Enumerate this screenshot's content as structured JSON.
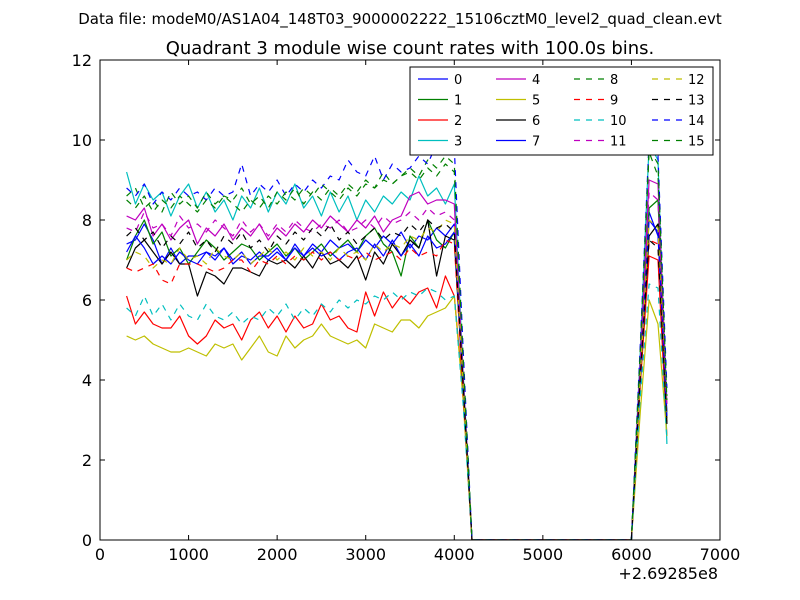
{
  "figure": {
    "supertitle": "Data file: modeM0/AS1A04_148T03_9000002222_15106cztM0_level2_quad_clean.evt"
  },
  "chart_data": {
    "type": "line",
    "title": "Quadrant 3 module wise count rates with 100.0s bins.",
    "xlabel": "",
    "ylabel": "",
    "x_offset_label": "+2.69285e8",
    "xlim": [
      0,
      7000
    ],
    "ylim": [
      0,
      12
    ],
    "xticks": [
      0,
      1000,
      2000,
      3000,
      4000,
      5000,
      6000,
      7000
    ],
    "yticks": [
      0,
      2,
      4,
      6,
      8,
      10,
      12
    ],
    "grid": false,
    "legend": {
      "placement": "top-right",
      "columns": 4
    },
    "x": [
      300,
      400,
      500,
      600,
      700,
      800,
      900,
      1000,
      1100,
      1200,
      1300,
      1400,
      1500,
      1600,
      1700,
      1800,
      1900,
      2000,
      2100,
      2200,
      2300,
      2400,
      2500,
      2600,
      2700,
      2800,
      2900,
      3000,
      3100,
      3200,
      3300,
      3400,
      3500,
      3600,
      3700,
      3800,
      3900,
      4000,
      4100,
      4200,
      4300,
      4400,
      4500,
      4600,
      4700,
      4800,
      4900,
      5000,
      5100,
      5200,
      5300,
      5400,
      5500,
      5600,
      5700,
      5800,
      5900,
      6000,
      6100,
      6200,
      6300,
      6400
    ],
    "series": [
      {
        "name": "0",
        "color": "#0000ff",
        "dash": "solid",
        "values": [
          7.4,
          7.5,
          7.9,
          7.5,
          6.9,
          7.3,
          6.9,
          7.1,
          7.1,
          7.2,
          7.1,
          7.3,
          7.0,
          7.2,
          6.9,
          7.1,
          7.1,
          7.3,
          7.0,
          7.4,
          7.1,
          7.4,
          7.2,
          7.5,
          7.3,
          7.4,
          7.2,
          7.5,
          7.3,
          7.6,
          7.4,
          7.7,
          7.3,
          7.6,
          7.5,
          7.8,
          7.6,
          7.9,
          3.9,
          0.0,
          0.0,
          0.0,
          0.0,
          0.0,
          0.0,
          0.0,
          0.0,
          0.0,
          0.0,
          0.0,
          0.0,
          0.0,
          0.0,
          0.0,
          0.0,
          0.0,
          0.0,
          0.0,
          4.2,
          8.2,
          7.6,
          3.2
        ]
      },
      {
        "name": "1",
        "color": "#008000",
        "dash": "solid",
        "values": [
          7.0,
          7.6,
          8.0,
          7.4,
          7.7,
          7.1,
          7.3,
          6.9,
          7.2,
          7.5,
          7.3,
          7.0,
          7.2,
          7.4,
          7.3,
          7.0,
          7.2,
          7.4,
          7.1,
          7.3,
          7.0,
          7.2,
          7.4,
          7.1,
          7.3,
          7.5,
          7.2,
          7.6,
          7.8,
          7.4,
          7.2,
          6.6,
          7.6,
          7.3,
          8.0,
          7.5,
          7.3,
          7.7,
          4.0,
          0.0,
          0.0,
          0.0,
          0.0,
          0.0,
          0.0,
          0.0,
          0.0,
          0.0,
          0.0,
          0.0,
          0.0,
          0.0,
          0.0,
          0.0,
          0.0,
          0.0,
          0.0,
          0.0,
          4.4,
          8.3,
          8.5,
          3.0
        ]
      },
      {
        "name": "2",
        "color": "#ff0000",
        "dash": "solid",
        "values": [
          6.1,
          5.4,
          5.7,
          5.4,
          5.3,
          5.3,
          5.6,
          5.1,
          4.9,
          5.1,
          5.5,
          5.3,
          5.4,
          5.0,
          5.5,
          5.7,
          5.3,
          5.6,
          5.2,
          5.6,
          5.3,
          5.4,
          5.9,
          5.5,
          5.6,
          5.3,
          5.2,
          6.2,
          5.6,
          6.2,
          5.8,
          6.1,
          5.9,
          6.2,
          6.3,
          5.8,
          6.6,
          6.1,
          3.7,
          0.0,
          0.0,
          0.0,
          0.0,
          0.0,
          0.0,
          0.0,
          0.0,
          0.0,
          0.0,
          0.0,
          0.0,
          0.0,
          0.0,
          0.0,
          0.0,
          0.0,
          0.0,
          0.0,
          3.9,
          7.1,
          7.0,
          2.6
        ]
      },
      {
        "name": "3",
        "color": "#00bfbf",
        "dash": "solid",
        "values": [
          9.2,
          8.4,
          8.9,
          8.5,
          8.7,
          8.1,
          8.6,
          8.9,
          8.3,
          8.7,
          8.2,
          8.5,
          8.0,
          8.6,
          8.3,
          8.8,
          8.2,
          8.7,
          8.4,
          8.9,
          8.3,
          8.6,
          8.1,
          8.7,
          8.2,
          8.6,
          8.0,
          8.5,
          8.2,
          8.6,
          8.4,
          8.7,
          8.5,
          9.1,
          8.6,
          8.8,
          8.4,
          8.9,
          4.2,
          0.0,
          0.0,
          0.0,
          0.0,
          0.0,
          0.0,
          0.0,
          0.0,
          0.0,
          0.0,
          0.0,
          0.0,
          0.0,
          0.0,
          0.0,
          0.0,
          0.0,
          0.0,
          0.0,
          4.7,
          9.9,
          9.5,
          2.4
        ]
      },
      {
        "name": "4",
        "color": "#bf00bf",
        "dash": "solid",
        "values": [
          8.1,
          8.0,
          8.3,
          7.6,
          7.9,
          7.5,
          7.8,
          8.0,
          7.4,
          7.8,
          7.6,
          7.9,
          7.5,
          7.8,
          7.6,
          7.9,
          7.5,
          7.8,
          7.6,
          7.9,
          7.7,
          8.0,
          7.8,
          8.1,
          7.9,
          7.7,
          8.0,
          7.8,
          8.1,
          7.7,
          8.0,
          8.1,
          8.6,
          8.7,
          8.4,
          8.5,
          8.5,
          8.4,
          4.1,
          0.0,
          0.0,
          0.0,
          0.0,
          0.0,
          0.0,
          0.0,
          0.0,
          0.0,
          0.0,
          0.0,
          0.0,
          0.0,
          0.0,
          0.0,
          0.0,
          0.0,
          0.0,
          0.0,
          4.5,
          9.0,
          8.9,
          3.4
        ]
      },
      {
        "name": "5",
        "color": "#bfbf00",
        "dash": "solid",
        "values": [
          5.1,
          5.0,
          5.1,
          4.9,
          4.8,
          4.7,
          4.7,
          4.8,
          4.7,
          4.6,
          4.9,
          4.8,
          4.9,
          4.5,
          4.8,
          5.1,
          4.7,
          4.6,
          5.1,
          4.8,
          5.0,
          5.1,
          5.4,
          5.1,
          5.0,
          4.9,
          5.0,
          4.8,
          5.4,
          5.3,
          5.2,
          5.5,
          5.5,
          5.3,
          5.6,
          5.7,
          5.8,
          6.1,
          3.5,
          0.0,
          0.0,
          0.0,
          0.0,
          0.0,
          0.0,
          0.0,
          0.0,
          0.0,
          0.0,
          0.0,
          0.0,
          0.0,
          0.0,
          0.0,
          0.0,
          0.0,
          0.0,
          0.0,
          3.2,
          6.0,
          5.4,
          2.6
        ]
      },
      {
        "name": "6",
        "color": "#000000",
        "dash": "solid",
        "values": [
          6.8,
          7.3,
          7.5,
          7.2,
          6.9,
          7.2,
          6.9,
          6.9,
          6.1,
          6.7,
          6.6,
          6.4,
          6.8,
          6.8,
          6.7,
          6.6,
          7.0,
          6.9,
          7.0,
          6.8,
          7.1,
          6.8,
          7.2,
          6.9,
          7.0,
          6.8,
          7.1,
          6.5,
          7.2,
          6.9,
          7.4,
          7.1,
          7.5,
          7.3,
          8.0,
          6.6,
          7.6,
          7.5,
          3.8,
          0.0,
          0.0,
          0.0,
          0.0,
          0.0,
          0.0,
          0.0,
          0.0,
          0.0,
          0.0,
          0.0,
          0.0,
          0.0,
          0.0,
          0.0,
          0.0,
          0.0,
          0.0,
          0.0,
          4.0,
          7.6,
          7.9,
          2.9
        ]
      },
      {
        "name": "7",
        "color": "#0000ff",
        "dash": "solid",
        "values": [
          7.2,
          7.6,
          7.3,
          6.9,
          7.1,
          6.9,
          7.2,
          7.0,
          6.9,
          7.2,
          7.0,
          7.3,
          6.9,
          7.1,
          7.0,
          7.2,
          7.0,
          7.2,
          7.0,
          7.3,
          7.1,
          7.3,
          7.1,
          7.2,
          7.0,
          7.2,
          7.3,
          7.0,
          7.4,
          7.1,
          7.5,
          7.1,
          7.4,
          7.1,
          7.6,
          7.3,
          7.4,
          7.7,
          3.8,
          0.0,
          0.0,
          0.0,
          0.0,
          0.0,
          0.0,
          0.0,
          0.0,
          0.0,
          0.0,
          0.0,
          0.0,
          0.0,
          0.0,
          0.0,
          0.0,
          0.0,
          0.0,
          0.0,
          4.0,
          8.0,
          7.7,
          3.1
        ]
      },
      {
        "name": "8",
        "color": "#008000",
        "dash": "dash",
        "values": [
          8.6,
          8.8,
          8.3,
          8.5,
          8.2,
          8.7,
          8.4,
          8.6,
          8.3,
          8.7,
          8.4,
          8.6,
          8.5,
          8.8,
          8.4,
          8.6,
          8.3,
          8.7,
          8.5,
          8.8,
          8.4,
          8.7,
          8.5,
          8.8,
          8.6,
          8.9,
          8.7,
          9.0,
          8.8,
          9.2,
          8.9,
          9.1,
          9.3,
          9.1,
          9.5,
          9.3,
          9.6,
          9.4,
          4.6,
          0.0,
          0.0,
          0.0,
          0.0,
          0.0,
          0.0,
          0.0,
          0.0,
          0.0,
          0.0,
          0.0,
          0.0,
          0.0,
          0.0,
          0.0,
          0.0,
          0.0,
          0.0,
          0.0,
          4.8,
          9.7,
          9.1,
          3.6
        ]
      },
      {
        "name": "9",
        "color": "#ff0000",
        "dash": "dash",
        "values": [
          6.8,
          6.7,
          6.8,
          6.9,
          6.5,
          6.4,
          6.9,
          6.9,
          6.9,
          6.8,
          6.7,
          6.8,
          7.0,
          7.0,
          6.7,
          7.0,
          6.9,
          7.1,
          6.9,
          7.1,
          7.0,
          7.2,
          7.0,
          7.2,
          7.0,
          7.1,
          7.0,
          7.2,
          7.0,
          7.1,
          7.2,
          7.0,
          7.3,
          7.1,
          7.2,
          7.1,
          7.5,
          7.4,
          3.7,
          0.0,
          0.0,
          0.0,
          0.0,
          0.0,
          0.0,
          0.0,
          0.0,
          0.0,
          0.0,
          0.0,
          0.0,
          0.0,
          0.0,
          0.0,
          0.0,
          0.0,
          0.0,
          0.0,
          3.9,
          7.5,
          7.4,
          2.8
        ]
      },
      {
        "name": "10",
        "color": "#00bfbf",
        "dash": "dash",
        "values": [
          5.8,
          5.6,
          6.1,
          5.6,
          5.9,
          5.5,
          5.9,
          5.6,
          5.5,
          5.9,
          5.6,
          5.5,
          5.7,
          5.4,
          5.6,
          5.5,
          5.8,
          5.6,
          5.9,
          5.5,
          5.8,
          5.6,
          5.9,
          5.7,
          6.0,
          5.8,
          6.0,
          5.9,
          6.1,
          6.0,
          6.2,
          6.0,
          6.2,
          6.1,
          6.3,
          6.2,
          6.0,
          6.1,
          3.4,
          0.0,
          0.0,
          0.0,
          0.0,
          0.0,
          0.0,
          0.0,
          0.0,
          0.0,
          0.0,
          0.0,
          0.0,
          0.0,
          0.0,
          0.0,
          0.0,
          0.0,
          0.0,
          0.0,
          3.6,
          6.4,
          6.3,
          2.5
        ]
      },
      {
        "name": "11",
        "color": "#bf00bf",
        "dash": "dash",
        "values": [
          7.8,
          7.7,
          8.2,
          7.8,
          7.9,
          7.6,
          8.1,
          7.8,
          7.9,
          7.7,
          8.0,
          7.8,
          7.6,
          8.0,
          7.7,
          7.9,
          7.6,
          7.9,
          7.7,
          8.0,
          7.8,
          7.7,
          7.9,
          7.8,
          8.0,
          7.7,
          7.8,
          8.0,
          7.8,
          8.1,
          7.9,
          8.0,
          8.2,
          8.0,
          8.3,
          8.1,
          8.2,
          8.0,
          4.1,
          0.0,
          0.0,
          0.0,
          0.0,
          0.0,
          0.0,
          0.0,
          0.0,
          0.0,
          0.0,
          0.0,
          0.0,
          0.0,
          0.0,
          0.0,
          0.0,
          0.0,
          0.0,
          0.0,
          4.3,
          8.7,
          8.5,
          3.3
        ]
      },
      {
        "name": "12",
        "color": "#bfbf00",
        "dash": "dash",
        "values": [
          7.0,
          7.2,
          7.1,
          6.8,
          7.0,
          6.9,
          7.3,
          7.0,
          7.1,
          6.9,
          7.3,
          7.1,
          7.0,
          7.2,
          6.9,
          7.1,
          7.3,
          7.0,
          7.2,
          7.0,
          7.3,
          7.1,
          7.2,
          7.0,
          7.3,
          7.1,
          7.2,
          7.0,
          7.4,
          7.2,
          7.4,
          7.3,
          7.6,
          7.5,
          7.8,
          7.7,
          8.0,
          7.9,
          3.9,
          0.0,
          0.0,
          0.0,
          0.0,
          0.0,
          0.0,
          0.0,
          0.0,
          0.0,
          0.0,
          0.0,
          0.0,
          0.0,
          0.0,
          0.0,
          0.0,
          0.0,
          0.0,
          0.0,
          4.1,
          8.0,
          7.8,
          3.0
        ]
      },
      {
        "name": "13",
        "color": "#000000",
        "dash": "dash",
        "values": [
          7.6,
          7.8,
          7.5,
          7.7,
          7.3,
          7.6,
          7.4,
          7.7,
          7.3,
          7.5,
          7.2,
          7.6,
          7.4,
          7.7,
          7.3,
          7.5,
          7.2,
          7.6,
          7.4,
          7.7,
          7.5,
          7.8,
          7.6,
          7.9,
          7.5,
          7.7,
          7.4,
          7.6,
          7.8,
          7.5,
          7.7,
          7.6,
          7.9,
          7.7,
          8.0,
          7.8,
          7.9,
          7.7,
          3.9,
          0.0,
          0.0,
          0.0,
          0.0,
          0.0,
          0.0,
          0.0,
          0.0,
          0.0,
          0.0,
          0.0,
          0.0,
          0.0,
          0.0,
          0.0,
          0.0,
          0.0,
          0.0,
          0.0,
          4.1,
          7.5,
          7.3,
          2.9
        ]
      },
      {
        "name": "14",
        "color": "#0000ff",
        "dash": "dash",
        "values": [
          8.8,
          8.6,
          8.9,
          8.4,
          8.7,
          8.5,
          8.8,
          8.6,
          8.7,
          8.5,
          8.8,
          8.6,
          8.7,
          9.4,
          8.6,
          8.9,
          8.7,
          9.0,
          8.6,
          8.9,
          8.7,
          9.0,
          8.8,
          9.1,
          9.0,
          9.5,
          9.2,
          9.1,
          9.6,
          9.0,
          9.4,
          9.2,
          9.3,
          9.6,
          9.4,
          9.9,
          9.7,
          9.8,
          4.8,
          0.0,
          0.0,
          0.0,
          0.0,
          0.0,
          0.0,
          0.0,
          0.0,
          0.0,
          0.0,
          0.0,
          0.0,
          0.0,
          0.0,
          0.0,
          0.0,
          0.0,
          0.0,
          0.0,
          4.9,
          10.0,
          9.6,
          3.8
        ]
      },
      {
        "name": "15",
        "color": "#008000",
        "dash": "dash",
        "values": [
          8.5,
          8.3,
          8.6,
          8.2,
          8.5,
          8.3,
          8.6,
          8.4,
          8.2,
          8.5,
          8.3,
          8.6,
          8.4,
          8.2,
          8.5,
          8.3,
          8.6,
          8.4,
          8.7,
          8.5,
          8.8,
          8.6,
          8.9,
          8.7,
          8.5,
          8.8,
          8.6,
          8.9,
          8.8,
          9.0,
          8.9,
          9.1,
          9.2,
          9.0,
          9.3,
          9.1,
          9.4,
          9.2,
          4.5,
          0.0,
          0.0,
          0.0,
          0.0,
          0.0,
          0.0,
          0.0,
          0.0,
          0.0,
          0.0,
          0.0,
          0.0,
          0.0,
          0.0,
          0.0,
          0.0,
          0.0,
          0.0,
          0.0,
          4.7,
          9.8,
          9.4,
          3.5
        ]
      }
    ]
  }
}
